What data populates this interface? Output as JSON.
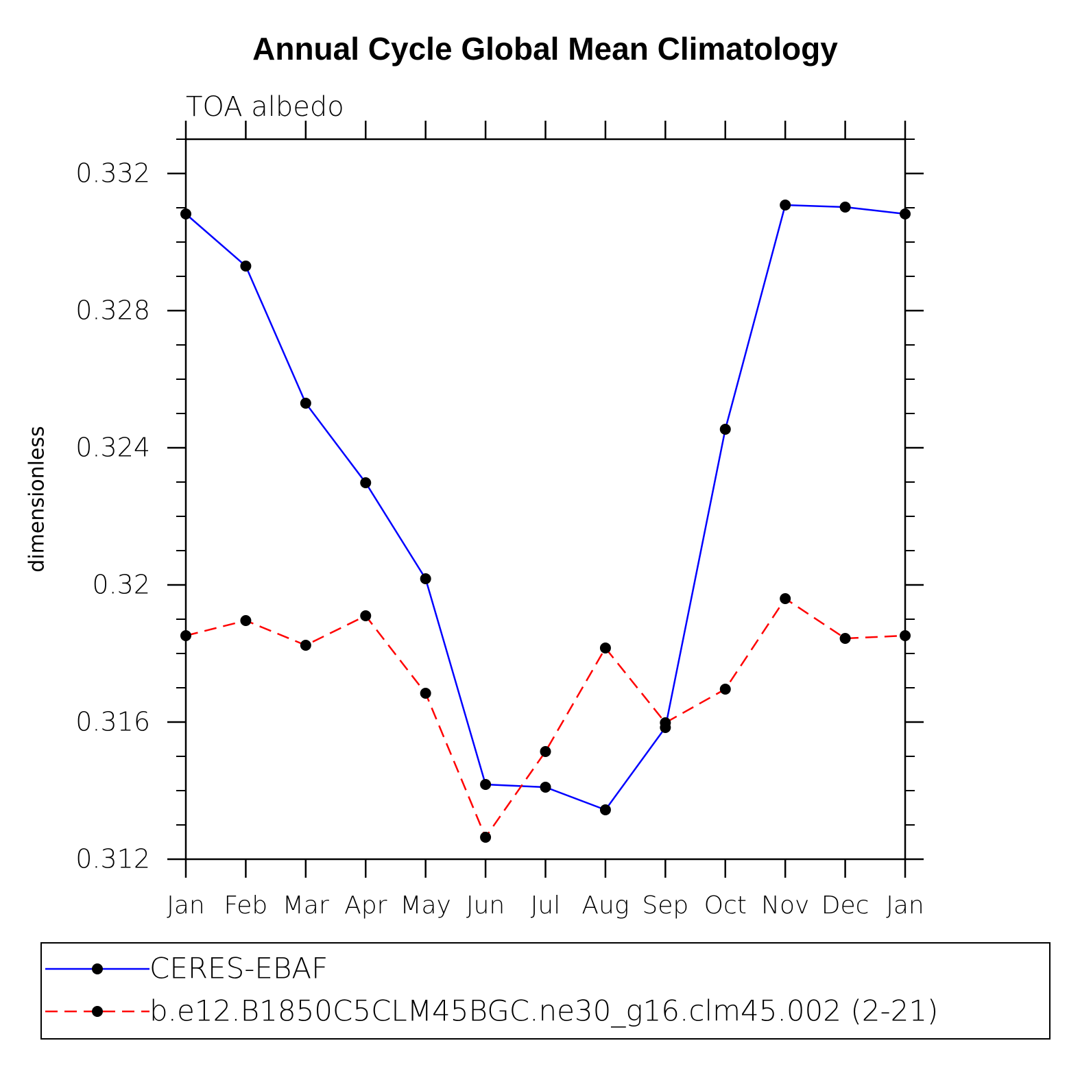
{
  "chart_data": {
    "type": "line",
    "title": "Annual Cycle Global Mean Climatology",
    "subtitle": "TOA albedo",
    "y_label": "dimensionless",
    "categories": [
      "Jan",
      "Feb",
      "Mar",
      "Apr",
      "May",
      "Jun",
      "Jul",
      "Aug",
      "Sep",
      "Oct",
      "Nov",
      "Dec",
      "Jan"
    ],
    "series": [
      {
        "name": "CERES-EBAF",
        "color": "#0000ff",
        "dash": false,
        "values": [
          0.33082,
          0.3293,
          0.3253,
          0.32298,
          0.32018,
          0.31418,
          0.3141,
          0.31344,
          0.31584,
          0.32454,
          0.33108,
          0.33102,
          0.33082
        ]
      },
      {
        "name": "b.e12.B1850C5CLM45BGC.ne30_g16.clm45.002 (2-21)",
        "color": "#ff0000",
        "dash": true,
        "values": [
          0.31852,
          0.31896,
          0.31824,
          0.3191,
          0.31684,
          0.31264,
          0.31514,
          0.31816,
          0.31598,
          0.31696,
          0.3196,
          0.31844,
          0.31852
        ]
      }
    ],
    "ylim": [
      0.312,
      0.333
    ],
    "yticks": [
      0.312,
      0.316,
      0.32,
      0.324,
      0.328,
      0.332
    ],
    "yminor_ticks": [
      0.313,
      0.314,
      0.315,
      0.317,
      0.318,
      0.319,
      0.321,
      0.322,
      0.323,
      0.325,
      0.326,
      0.327,
      0.329,
      0.33,
      0.331,
      0.333
    ],
    "marker_color": "#000000"
  }
}
